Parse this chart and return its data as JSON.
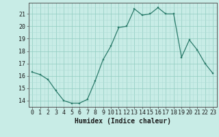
{
  "x": [
    0,
    1,
    2,
    3,
    4,
    5,
    6,
    7,
    8,
    9,
    10,
    11,
    12,
    13,
    14,
    15,
    16,
    17,
    18,
    19,
    20,
    21,
    22,
    23
  ],
  "y": [
    16.3,
    16.1,
    15.7,
    14.8,
    14.0,
    13.8,
    13.8,
    14.1,
    15.6,
    17.3,
    18.4,
    19.9,
    20.0,
    21.4,
    20.9,
    21.0,
    21.5,
    21.0,
    21.0,
    17.5,
    18.9,
    18.1,
    17.0,
    16.2
  ],
  "bg_color": "#c8ece6",
  "line_color": "#2a7a6a",
  "marker_color": "#2a7a6a",
  "grid_color_minor": "#b0ddd6",
  "grid_color_major": "#90ccc0",
  "xlabel": "Humidex (Indice chaleur)",
  "ylim": [
    13.5,
    21.9
  ],
  "xlim": [
    -0.5,
    23.5
  ],
  "yticks": [
    14,
    15,
    16,
    17,
    18,
    19,
    20,
    21
  ],
  "xticks": [
    0,
    1,
    2,
    3,
    4,
    5,
    6,
    7,
    8,
    9,
    10,
    11,
    12,
    13,
    14,
    15,
    16,
    17,
    18,
    19,
    20,
    21,
    22,
    23
  ],
  "font_size_label": 7.0,
  "font_size_tick": 6.0
}
